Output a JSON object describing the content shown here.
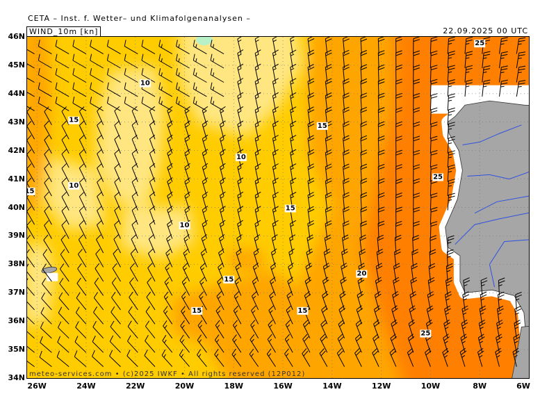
{
  "header": {
    "source": "CETA – Inst. f. Wetter– und Klimafolgenanalysen –",
    "parameter": "WIND_10m [kn]",
    "datetime": "22.09.2025 00 UTC"
  },
  "footer": "meteo-services.com • (c)2025 IWKF • All rights reserved (12P012)",
  "axes": {
    "lat_labels": [
      "46N",
      "45N",
      "44N",
      "43N",
      "42N",
      "41N",
      "40N",
      "39N",
      "38N",
      "37N",
      "36N",
      "35N",
      "34N"
    ],
    "lon_labels": [
      "26W",
      "24W",
      "22W",
      "20W",
      "18W",
      "16W",
      "14W",
      "12W",
      "10W",
      "8W",
      "6W"
    ]
  },
  "contour_labels": [
    {
      "text": "10",
      "lon": -21.6,
      "lat": 44.4
    },
    {
      "text": "15",
      "lon": -24.5,
      "lat": 43.1
    },
    {
      "text": "10",
      "lon": -17.7,
      "lat": 41.8
    },
    {
      "text": "15",
      "lon": -14.4,
      "lat": 42.9
    },
    {
      "text": "15",
      "lon": -26.3,
      "lat": 40.6
    },
    {
      "text": "10",
      "lon": -24.5,
      "lat": 40.8
    },
    {
      "text": "15",
      "lon": -15.7,
      "lat": 40.0
    },
    {
      "text": "10",
      "lon": -20.0,
      "lat": 39.4
    },
    {
      "text": "20",
      "lon": -12.8,
      "lat": 37.7
    },
    {
      "text": "15",
      "lon": -18.2,
      "lat": 37.5
    },
    {
      "text": "15",
      "lon": -15.2,
      "lat": 36.4
    },
    {
      "text": "15",
      "lon": -19.5,
      "lat": 36.4
    },
    {
      "text": "25",
      "lon": -9.7,
      "lat": 41.1
    },
    {
      "text": "25",
      "lon": -10.2,
      "lat": 35.6
    },
    {
      "text": "25",
      "lon": -8.0,
      "lat": 45.8
    }
  ],
  "colors": {
    "land": "#a6a6a6",
    "sea_low": "#ffe680",
    "sea_mid": "#ffcc00",
    "sea_high": "#ffa500",
    "sea_vhigh": "#ff8000",
    "sea_max": "#ff6400",
    "calm": "#b8f0c8",
    "river": "#3050e0",
    "barb": "#000000"
  },
  "legend_levels_kn": [
    10,
    15,
    20,
    25
  ]
}
